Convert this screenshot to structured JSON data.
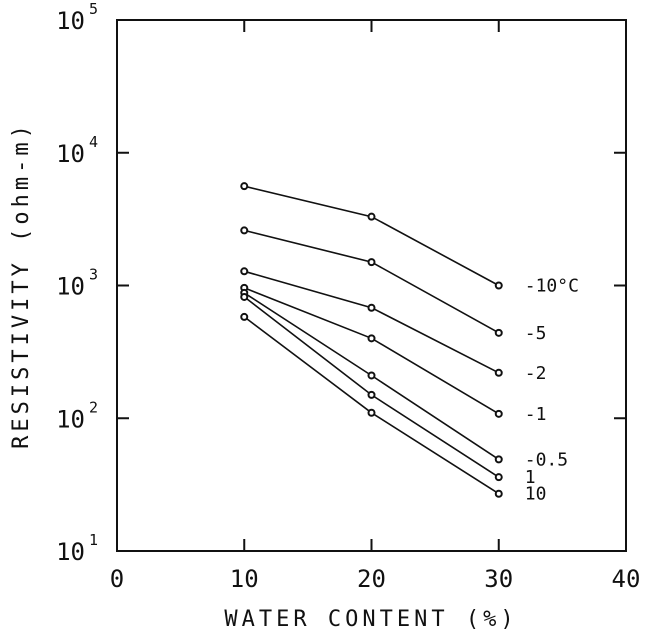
{
  "chart_data": {
    "type": "line",
    "title": "",
    "xlabel": "WATER CONTENT (%)",
    "ylabel": "RESISTIVITY (ohm-m)",
    "x_scale": "linear",
    "y_scale": "log",
    "xlim": [
      0,
      40
    ],
    "ylim": [
      10,
      100000
    ],
    "x_ticks": [
      0,
      10,
      20,
      30,
      40
    ],
    "y_ticks": [
      {
        "value": 10,
        "base": "10",
        "exp": "1"
      },
      {
        "value": 100,
        "base": "10",
        "exp": "2"
      },
      {
        "value": 1000,
        "base": "10",
        "exp": "3"
      },
      {
        "value": 10000,
        "base": "10",
        "exp": "4"
      },
      {
        "value": 100000,
        "base": "10",
        "exp": "5"
      }
    ],
    "grid": false,
    "legend": "none",
    "series": [
      {
        "label": "-10°C",
        "x": [
          10,
          20,
          30
        ],
        "y": [
          5600,
          3300,
          1000
        ]
      },
      {
        "label": "-5",
        "x": [
          10,
          20,
          30
        ],
        "y": [
          2600,
          1500,
          440
        ]
      },
      {
        "label": "-2",
        "x": [
          10,
          20,
          30
        ],
        "y": [
          1280,
          680,
          220
        ]
      },
      {
        "label": "-1",
        "x": [
          10,
          20,
          30
        ],
        "y": [
          960,
          400,
          108
        ]
      },
      {
        "label": "-0.5",
        "x": [
          10,
          20,
          30
        ],
        "y": [
          880,
          210,
          49
        ]
      },
      {
        "label": "1",
        "x": [
          10,
          20,
          30
        ],
        "y": [
          820,
          150,
          36
        ]
      },
      {
        "label": "10",
        "x": [
          10,
          20,
          30
        ],
        "y": [
          580,
          110,
          27
        ]
      }
    ]
  }
}
